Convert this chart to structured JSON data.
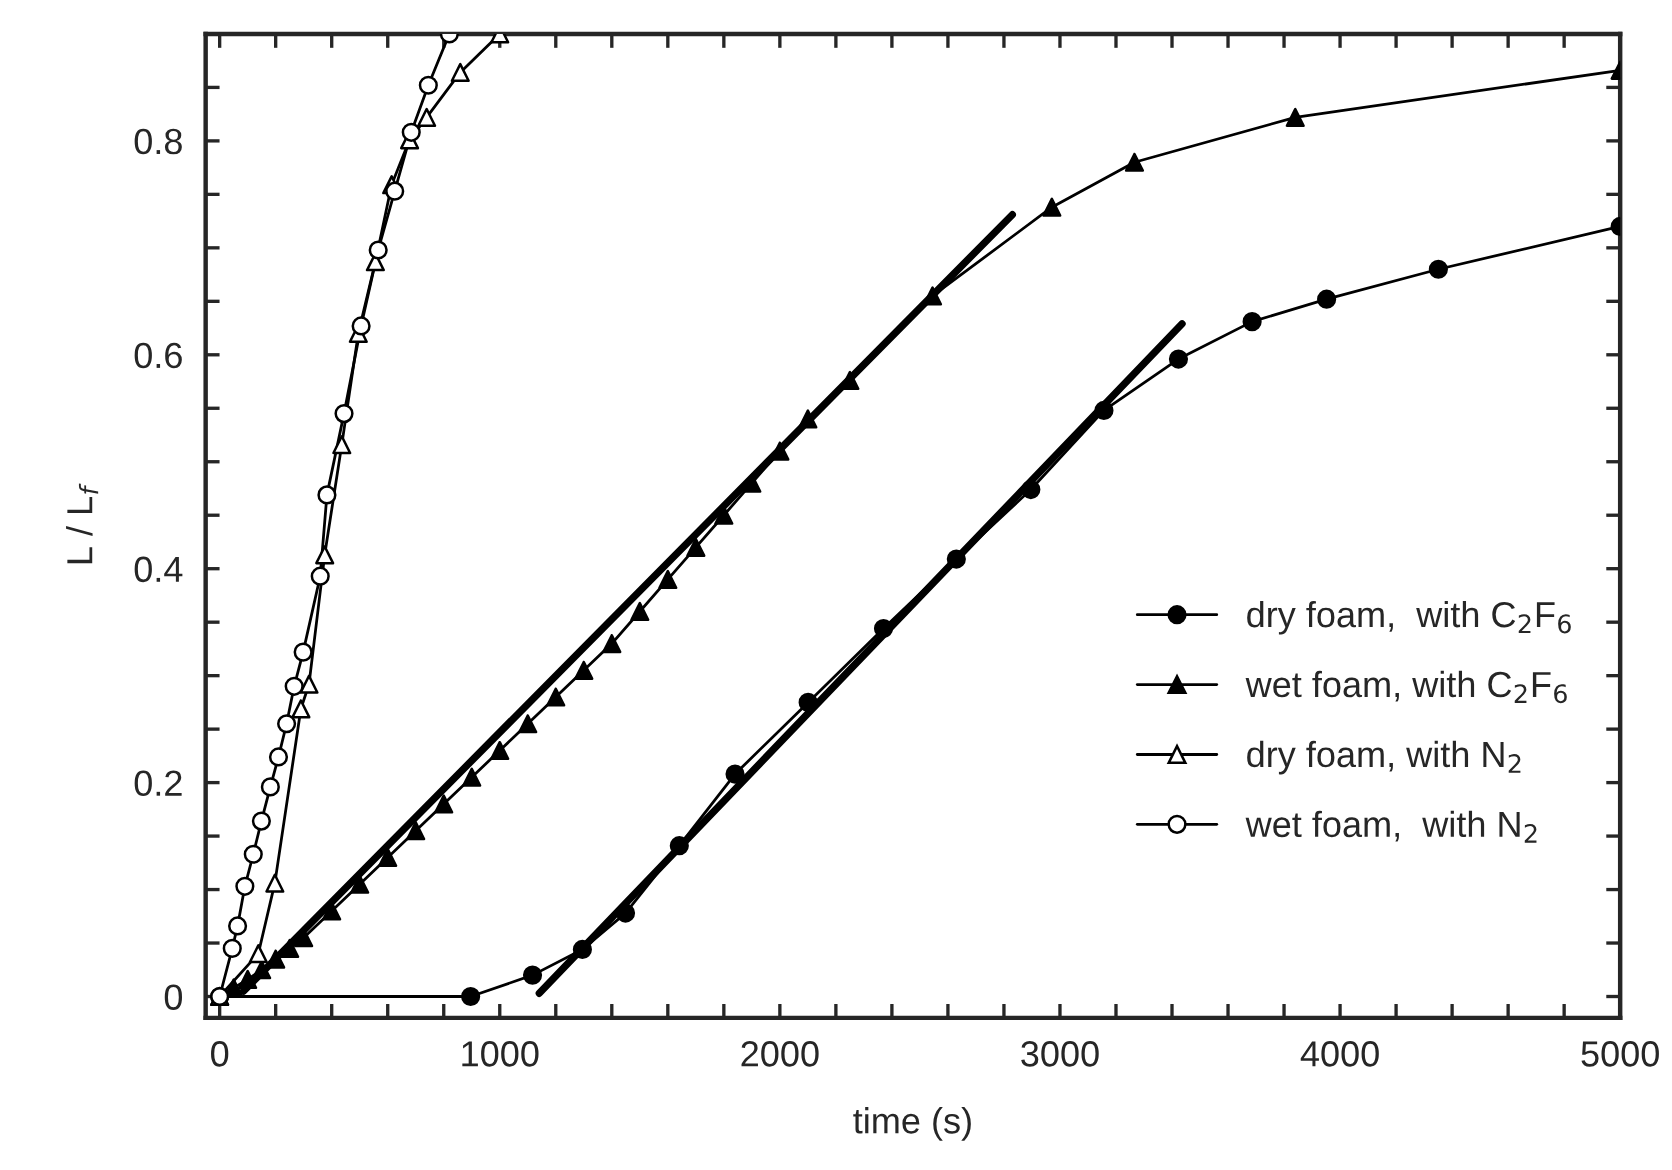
{
  "chart_data": {
    "type": "line",
    "xlabel": "time (s)",
    "ylabel": "L / L$_{f}$",
    "xlim": [
      -50,
      5000
    ],
    "ylim": [
      -0.02,
      0.9
    ],
    "xticks": [
      0,
      {
        "value": 200,
        "label": null
      },
      {
        "value": 400,
        "label": null
      },
      {
        "value": 600,
        "label": null
      },
      {
        "value": 800,
        "label": null
      },
      1000,
      {
        "value": 1200,
        "label": null
      },
      {
        "value": 1400,
        "label": null
      },
      {
        "value": 1600,
        "label": null
      },
      {
        "value": 1800,
        "label": null
      },
      2000,
      {
        "value": 2200,
        "label": null
      },
      {
        "value": 2400,
        "label": null
      },
      {
        "value": 2600,
        "label": null
      },
      {
        "value": 2800,
        "label": null
      },
      3000,
      {
        "value": 3200,
        "label": null
      },
      {
        "value": 3400,
        "label": null
      },
      {
        "value": 3600,
        "label": null
      },
      {
        "value": 3800,
        "label": null
      },
      4000,
      {
        "value": 4200,
        "label": null
      },
      {
        "value": 4400,
        "label": null
      },
      {
        "value": 4600,
        "label": null
      },
      {
        "value": 4800,
        "label": null
      },
      5000
    ],
    "yticks": [
      0,
      {
        "value": 0.05,
        "label": null
      },
      {
        "value": 0.1,
        "label": null
      },
      {
        "value": 0.15,
        "label": null
      },
      0.2,
      {
        "value": 0.25,
        "label": null
      },
      {
        "value": 0.3,
        "label": null
      },
      {
        "value": 0.35,
        "label": null
      },
      0.4,
      {
        "value": 0.45,
        "label": null
      },
      {
        "value": 0.5,
        "label": null
      },
      {
        "value": 0.55,
        "label": null
      },
      0.6,
      {
        "value": 0.65,
        "label": null
      },
      {
        "value": 0.7,
        "label": null
      },
      {
        "value": 0.75,
        "label": null
      },
      0.8,
      {
        "value": 0.85,
        "label": null
      }
    ],
    "grid": false,
    "legend": "right",
    "series": [
      {
        "name": "dry foam,  with C$_{2}$F$_{6}$",
        "color": "#000000",
        "marker": "circle",
        "x": [
          0,
          896,
          1117,
          1295,
          1449,
          1641,
          1840,
          2101,
          2370,
          2630,
          2896,
          3157,
          3423,
          3686,
          3952,
          4351,
          5000
        ],
        "values": [
          0,
          0,
          0.02,
          0.044,
          0.078,
          0.141,
          0.208,
          0.275,
          0.344,
          0.409,
          0.474,
          0.548,
          0.596,
          0.631,
          0.652,
          0.68,
          0.72
        ]
      },
      {
        "name": "wet foam, with C$_{2}$F$_{6}$",
        "color": "#000000",
        "marker": "triangle",
        "x": [
          0,
          50,
          100,
          150,
          200,
          250,
          300,
          400,
          500,
          600,
          700,
          800,
          900,
          1000,
          1100,
          1200,
          1300,
          1400,
          1500,
          1600,
          1700,
          1800,
          1900,
          2000,
          2100,
          2250,
          2545,
          2971,
          3266,
          3840,
          5000
        ],
        "values": [
          0,
          0.008,
          0.016,
          0.025,
          0.035,
          0.045,
          0.055,
          0.08,
          0.105,
          0.13,
          0.155,
          0.18,
          0.205,
          0.23,
          0.255,
          0.28,
          0.305,
          0.33,
          0.36,
          0.39,
          0.42,
          0.45,
          0.48,
          0.51,
          0.54,
          0.576,
          0.655,
          0.738,
          0.78,
          0.822,
          0.866
        ]
      },
      {
        "name": "dry foam, with N$_{2}$",
        "color": "#000000",
        "marker": "triangle",
        "colors": [
          "#ffffff",
          "#ffffff",
          "#ffffff",
          "#ffffff",
          "#ffffff",
          "#ffffff",
          "#ffffff",
          "#ffffff",
          "#ffffff",
          "#ffffff",
          "#ffffff",
          "#ffffff",
          "#ffffff",
          "#ffffff"
        ],
        "x": [
          0,
          138,
          197,
          290,
          319,
          375,
          436,
          495,
          556,
          614,
          678,
          739,
          859,
          1000
        ],
        "values": [
          0,
          0.04,
          0.106,
          0.269,
          0.292,
          0.413,
          0.516,
          0.62,
          0.687,
          0.759,
          0.801,
          0.822,
          0.864,
          0.9
        ]
      },
      {
        "name": "wet foam,  with N$_{2}$",
        "color": "#000000",
        "marker": "circle",
        "colors": [
          "#ffffff",
          "#ffffff",
          "#ffffff",
          "#ffffff",
          "#ffffff",
          "#ffffff",
          "#ffffff",
          "#ffffff",
          "#ffffff",
          "#ffffff",
          "#ffffff",
          "#ffffff",
          "#ffffff",
          "#ffffff",
          "#ffffff",
          "#ffffff",
          "#ffffff",
          "#ffffff",
          "#ffffff",
          "#ffffff"
        ],
        "x": [
          0,
          45,
          64,
          90,
          120,
          149,
          181,
          210,
          239,
          266,
          298,
          359,
          383,
          444,
          505,
          566,
          625,
          684,
          745,
          820
        ],
        "values": [
          0,
          0.045,
          0.066,
          0.103,
          0.133,
          0.164,
          0.196,
          0.224,
          0.255,
          0.29,
          0.322,
          0.393,
          0.469,
          0.545,
          0.627,
          0.698,
          0.753,
          0.808,
          0.852,
          0.9
        ]
      },
      {
        "color": "#000000",
        "marker": "none",
        "x": [
          85,
          2830
        ],
        "values": [
          0.005,
          0.731
        ]
      },
      {
        "color": "#000000",
        "marker": "none",
        "x": [
          1141,
          3436
        ],
        "values": [
          0.003,
          0.629
        ]
      }
    ]
  }
}
